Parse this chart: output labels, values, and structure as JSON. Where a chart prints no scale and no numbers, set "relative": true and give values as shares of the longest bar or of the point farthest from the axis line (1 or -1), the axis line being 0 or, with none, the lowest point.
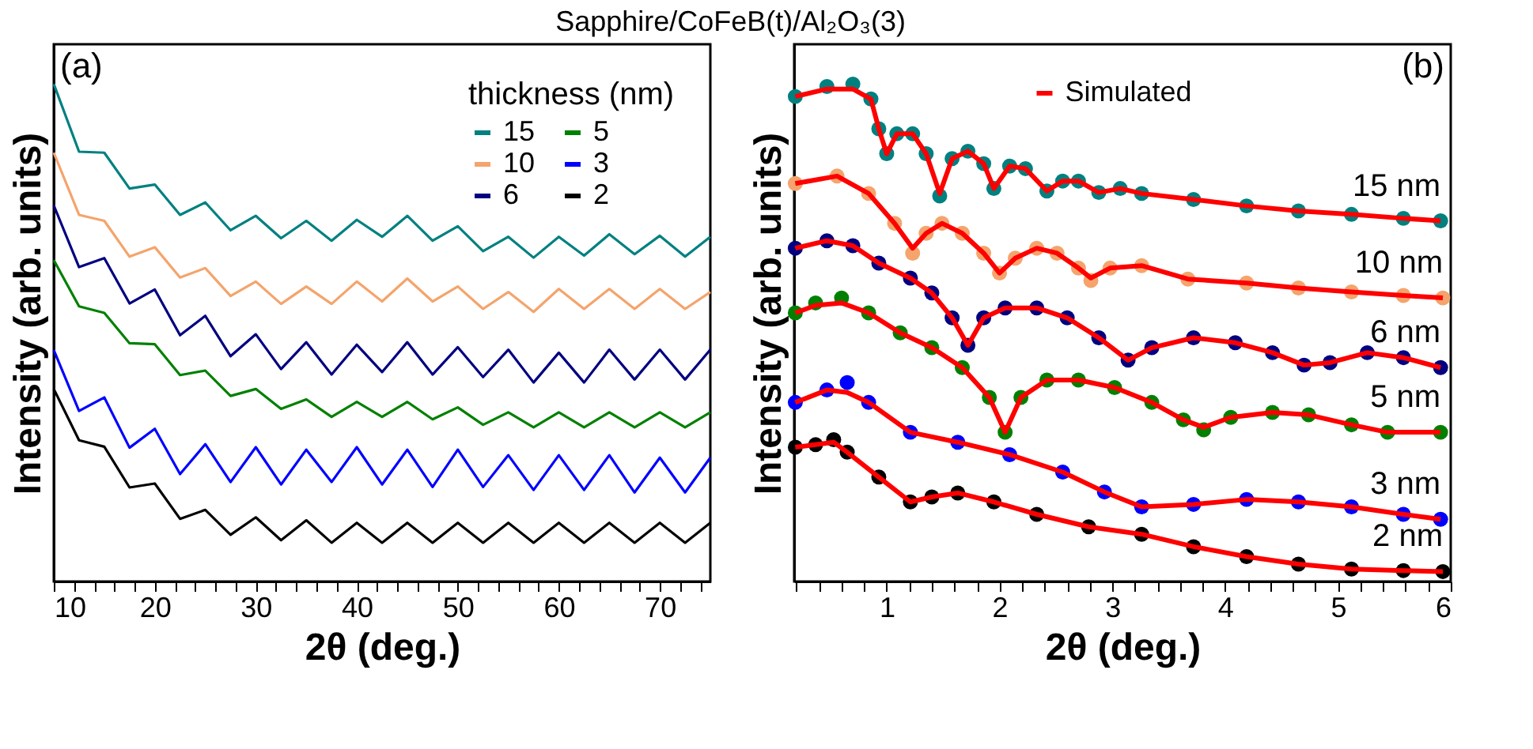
{
  "chart_data": [
    {
      "type": "line",
      "title": "Sapphire/CoFeB(t)/Al₂O₃(3)",
      "xlabel": "2θ (deg.)",
      "ylabel": "Intensity (arb. units)",
      "relative": true,
      "tick_labels": "x",
      "grid": false,
      "legend": "top right",
      "legend_title": "thickness (nm)",
      "annotations": [
        "(a)"
      ],
      "xlim": [
        10,
        75
      ],
      "xticks": [
        10,
        {
          "value": 12,
          "label": null
        },
        {
          "value": 14,
          "label": null
        },
        {
          "value": 16,
          "label": null
        },
        {
          "value": 18,
          "label": null
        },
        20,
        {
          "value": 22,
          "label": null
        },
        {
          "value": 24,
          "label": null
        },
        {
          "value": 26,
          "label": null
        },
        {
          "value": 28,
          "label": null
        },
        30,
        {
          "value": 32,
          "label": null
        },
        {
          "value": 34,
          "label": null
        },
        {
          "value": 36,
          "label": null
        },
        {
          "value": 38,
          "label": null
        },
        40,
        {
          "value": 42,
          "label": null
        },
        {
          "value": 44,
          "label": null
        },
        {
          "value": 46,
          "label": null
        },
        {
          "value": 48,
          "label": null
        },
        50,
        {
          "value": 52,
          "label": null
        },
        {
          "value": 54,
          "label": null
        },
        {
          "value": 56,
          "label": null
        },
        {
          "value": 58,
          "label": null
        },
        60,
        {
          "value": 62,
          "label": null
        },
        {
          "value": 64,
          "label": null
        },
        {
          "value": 66,
          "label": null
        },
        {
          "value": 68,
          "label": null
        },
        70,
        {
          "value": 72,
          "label": null
        },
        {
          "value": 74,
          "label": null
        }
      ],
      "series": [
        {
          "name": "15",
          "color": "#008080",
          "x": [
            10,
            12.5,
            15,
            17.5,
            20,
            22.5,
            25,
            27.5,
            30,
            32.5,
            35,
            37.5,
            40,
            42.5,
            45,
            47.5,
            50,
            52.5,
            55,
            57.5,
            60,
            62.5,
            65,
            67.5,
            70,
            72.5,
            75
          ],
          "values": [
            1,
            0.864,
            0.862,
            0.79,
            0.798,
            0.737,
            0.762,
            0.706,
            0.735,
            0.69,
            0.725,
            0.685,
            0.727,
            0.693,
            0.735,
            0.685,
            0.714,
            0.664,
            0.693,
            0.651,
            0.693,
            0.655,
            0.698,
            0.658,
            0.695,
            0.653,
            0.693
          ]
        },
        {
          "name": "10",
          "color": "#f4a46c",
          "x": [
            10,
            12.5,
            15,
            17.5,
            20,
            22.5,
            25,
            27.5,
            30,
            32.5,
            35,
            37.5,
            40,
            42.5,
            45,
            47.5,
            50,
            52.5,
            55,
            57.5,
            60,
            62.5,
            65,
            67.5,
            70,
            72.5,
            75
          ],
          "values": [
            0.862,
            0.737,
            0.725,
            0.653,
            0.672,
            0.611,
            0.63,
            0.574,
            0.603,
            0.558,
            0.593,
            0.558,
            0.603,
            0.563,
            0.609,
            0.563,
            0.593,
            0.548,
            0.582,
            0.542,
            0.588,
            0.548,
            0.588,
            0.548,
            0.588,
            0.548,
            0.582
          ]
        },
        {
          "name": "6",
          "color": "#000080",
          "x": [
            10,
            12.5,
            15,
            17.5,
            20,
            22.5,
            25,
            27.5,
            30,
            32.5,
            35,
            37.5,
            40,
            42.5,
            45,
            47.5,
            50,
            52.5,
            55,
            57.5,
            60,
            62.5,
            65,
            67.5,
            70,
            72.5,
            75
          ],
          "values": [
            0.756,
            0.632,
            0.65,
            0.559,
            0.587,
            0.495,
            0.534,
            0.453,
            0.497,
            0.427,
            0.481,
            0.416,
            0.476,
            0.421,
            0.481,
            0.416,
            0.471,
            0.411,
            0.466,
            0.4,
            0.46,
            0.4,
            0.466,
            0.406,
            0.466,
            0.406,
            0.466
          ]
        },
        {
          "name": "5",
          "color": "#008000",
          "x": [
            10,
            12.5,
            15,
            17.5,
            20,
            22.5,
            25,
            27.5,
            30,
            32.5,
            35,
            37.5,
            40,
            42.5,
            45,
            47.5,
            50,
            52.5,
            55,
            57.5,
            60,
            62.5,
            65,
            67.5,
            70,
            72.5,
            75
          ],
          "values": [
            0.646,
            0.553,
            0.54,
            0.479,
            0.477,
            0.415,
            0.424,
            0.373,
            0.387,
            0.347,
            0.366,
            0.331,
            0.361,
            0.331,
            0.361,
            0.326,
            0.35,
            0.315,
            0.34,
            0.31,
            0.34,
            0.31,
            0.34,
            0.31,
            0.34,
            0.31,
            0.34
          ]
        },
        {
          "name": "3",
          "color": "#0000ff",
          "x": [
            10,
            12.5,
            15,
            17.5,
            20,
            22.5,
            25,
            27.5,
            30,
            32.5,
            35,
            37.5,
            40,
            42.5,
            45,
            47.5,
            50,
            52.5,
            55,
            57.5,
            60,
            62.5,
            65,
            67.5,
            70,
            72.5,
            75
          ],
          "values": [
            0.465,
            0.343,
            0.37,
            0.269,
            0.307,
            0.216,
            0.276,
            0.2,
            0.27,
            0.195,
            0.265,
            0.2,
            0.27,
            0.195,
            0.265,
            0.19,
            0.265,
            0.19,
            0.254,
            0.184,
            0.254,
            0.184,
            0.254,
            0.179,
            0.249,
            0.179,
            0.249
          ]
        },
        {
          "name": "2",
          "color": "#000000",
          "x": [
            10,
            12.5,
            15,
            17.5,
            20,
            22.5,
            25,
            27.5,
            30,
            32.5,
            35,
            37.5,
            40,
            42.5,
            45,
            47.5,
            50,
            52.5,
            55,
            57.5,
            60,
            62.5,
            65,
            67.5,
            70,
            72.5,
            75
          ],
          "values": [
            0.387,
            0.284,
            0.271,
            0.189,
            0.197,
            0.126,
            0.144,
            0.094,
            0.129,
            0.083,
            0.123,
            0.078,
            0.118,
            0.078,
            0.118,
            0.078,
            0.118,
            0.078,
            0.118,
            0.078,
            0.118,
            0.078,
            0.118,
            0.078,
            0.118,
            0.078,
            0.118
          ]
        }
      ]
    },
    {
      "type": "line",
      "xlabel": "2θ (deg.)",
      "ylabel": "Intensity (arb. units)",
      "relative": true,
      "tick_labels": "x",
      "grid": false,
      "legend": "top",
      "annotations": [
        "(b)"
      ],
      "xlim": [
        0.18,
        6
      ],
      "xticks": [
        {
          "value": 0.2,
          "label": null
        },
        {
          "value": 0.4,
          "label": null
        },
        {
          "value": 0.6,
          "label": null
        },
        {
          "value": 0.8,
          "label": null
        },
        1,
        {
          "value": 1.2,
          "label": null
        },
        {
          "value": 1.4,
          "label": null
        },
        {
          "value": 1.6,
          "label": null
        },
        {
          "value": 1.8,
          "label": null
        },
        2,
        {
          "value": 2.2,
          "label": null
        },
        {
          "value": 2.4,
          "label": null
        },
        {
          "value": 2.6,
          "label": null
        },
        {
          "value": 2.8,
          "label": null
        },
        3,
        {
          "value": 3.2,
          "label": null
        },
        {
          "value": 3.4,
          "label": null
        },
        {
          "value": 3.6,
          "label": null
        },
        {
          "value": 3.8,
          "label": null
        },
        4,
        {
          "value": 4.2,
          "label": null
        },
        {
          "value": 4.4,
          "label": null
        },
        {
          "value": 4.6,
          "label": null
        },
        {
          "value": 4.8,
          "label": null
        },
        5,
        {
          "value": 5.2,
          "label": null
        },
        {
          "value": 5.4,
          "label": null
        },
        {
          "value": 5.6,
          "label": null
        },
        {
          "value": 5.8,
          "label": null
        },
        6
      ],
      "series": [
        {
          "name": "15 nm",
          "type": "scatter",
          "marker": "circle",
          "color": "#008080",
          "x": [
            0.19,
            0.47,
            0.7,
            0.86,
            0.93,
            1.0,
            1.09,
            1.23,
            1.35,
            1.47,
            1.58,
            1.72,
            1.86,
            1.95,
            2.09,
            2.23,
            2.42,
            2.56,
            2.7,
            2.88,
            3.07,
            3.26,
            3.72,
            4.19,
            4.65,
            5.12,
            5.58,
            5.91
          ],
          "values": [
            0.975,
            0.995,
            1.0,
            0.97,
            0.91,
            0.86,
            0.9,
            0.9,
            0.86,
            0.775,
            0.85,
            0.865,
            0.84,
            0.79,
            0.835,
            0.83,
            0.785,
            0.805,
            0.805,
            0.782,
            0.79,
            0.78,
            0.768,
            0.755,
            0.745,
            0.738,
            0.73,
            0.725
          ]
        },
        {
          "name": "10 nm",
          "type": "scatter",
          "marker": "circle",
          "color": "#f4a46c",
          "x": [
            0.19,
            0.56,
            0.84,
            1.07,
            1.23,
            1.35,
            1.49,
            1.67,
            1.86,
            2.0,
            2.14,
            2.33,
            2.51,
            2.7,
            2.81,
            2.98,
            3.26,
            3.67,
            4.19,
            4.65,
            5.12,
            5.58,
            5.93
          ],
          "values": [
            0.8,
            0.815,
            0.78,
            0.72,
            0.66,
            0.7,
            0.72,
            0.7,
            0.66,
            0.62,
            0.65,
            0.67,
            0.66,
            0.63,
            0.605,
            0.63,
            0.635,
            0.608,
            0.6,
            0.59,
            0.582,
            0.575,
            0.57
          ]
        },
        {
          "name": "6 nm",
          "type": "scatter",
          "marker": "circle",
          "color": "#000080",
          "x": [
            0.19,
            0.47,
            0.7,
            0.93,
            1.21,
            1.4,
            1.58,
            1.72,
            1.86,
            2.05,
            2.33,
            2.6,
            2.88,
            3.14,
            3.35,
            3.72,
            4.09,
            4.42,
            4.7,
            4.93,
            5.26,
            5.58,
            5.91
          ],
          "values": [
            0.67,
            0.685,
            0.675,
            0.64,
            0.61,
            0.58,
            0.53,
            0.475,
            0.53,
            0.55,
            0.55,
            0.53,
            0.49,
            0.445,
            0.47,
            0.49,
            0.48,
            0.46,
            0.435,
            0.44,
            0.46,
            0.45,
            0.43
          ]
        },
        {
          "name": "5 nm",
          "type": "scatter",
          "marker": "circle",
          "color": "#008000",
          "x": [
            0.19,
            0.37,
            0.6,
            0.84,
            1.12,
            1.4,
            1.67,
            1.91,
            2.05,
            2.19,
            2.42,
            2.7,
            3.02,
            3.35,
            3.63,
            3.81,
            4.05,
            4.42,
            4.74,
            5.12,
            5.44,
            5.91
          ],
          "values": [
            0.54,
            0.56,
            0.57,
            0.54,
            0.5,
            0.47,
            0.43,
            0.37,
            0.3,
            0.37,
            0.405,
            0.405,
            0.39,
            0.36,
            0.325,
            0.305,
            0.33,
            0.34,
            0.335,
            0.315,
            0.3,
            0.3
          ]
        },
        {
          "name": "3 nm",
          "type": "scatter",
          "marker": "circle",
          "color": "#0000ff",
          "x": [
            0.19,
            0.47,
            0.65,
            0.84,
            1.21,
            1.63,
            2.09,
            2.56,
            2.93,
            3.26,
            3.72,
            4.19,
            4.65,
            5.12,
            5.58,
            5.91
          ],
          "values": [
            0.36,
            0.385,
            0.4,
            0.36,
            0.3,
            0.28,
            0.255,
            0.22,
            0.18,
            0.15,
            0.155,
            0.165,
            0.16,
            0.15,
            0.135,
            0.125
          ]
        },
        {
          "name": "2 nm",
          "type": "scatter",
          "marker": "circle",
          "color": "#000000",
          "x": [
            0.19,
            0.37,
            0.53,
            0.65,
            0.93,
            1.21,
            1.4,
            1.63,
            1.95,
            2.33,
            2.79,
            3.26,
            3.72,
            4.19,
            4.65,
            5.12,
            5.58,
            5.93
          ],
          "values": [
            0.27,
            0.275,
            0.285,
            0.26,
            0.21,
            0.16,
            0.17,
            0.178,
            0.16,
            0.135,
            0.11,
            0.095,
            0.07,
            0.05,
            0.035,
            0.025,
            0.022,
            0.02
          ]
        },
        {
          "name": "Simulated",
          "type": "line",
          "color": "#ff0000",
          "x": [
            0.19,
            0.47,
            0.7,
            0.86,
            0.93,
            1.0,
            1.09,
            1.23,
            1.35,
            1.47,
            1.58,
            1.72,
            1.86,
            1.95,
            2.09,
            2.23,
            2.42,
            2.56,
            2.7,
            2.88,
            3.07,
            3.26,
            3.72,
            4.19,
            4.65,
            5.12,
            5.58,
            5.91
          ],
          "values": [
            0.975,
            0.99,
            0.99,
            0.97,
            0.91,
            0.86,
            0.9,
            0.9,
            0.86,
            0.78,
            0.85,
            0.865,
            0.84,
            0.79,
            0.835,
            0.83,
            0.785,
            0.805,
            0.805,
            0.782,
            0.79,
            0.78,
            0.768,
            0.755,
            0.745,
            0.738,
            0.73,
            0.725
          ]
        },
        {
          "type": "line",
          "color": "#ff0000",
          "x": [
            0.19,
            0.56,
            0.84,
            1.07,
            1.23,
            1.35,
            1.49,
            1.67,
            1.86,
            2.0,
            2.14,
            2.33,
            2.51,
            2.7,
            2.81,
            2.98,
            3.26,
            3.67,
            4.19,
            4.65,
            5.12,
            5.58,
            5.93
          ],
          "values": [
            0.8,
            0.815,
            0.78,
            0.72,
            0.67,
            0.7,
            0.72,
            0.7,
            0.66,
            0.62,
            0.65,
            0.67,
            0.66,
            0.63,
            0.61,
            0.63,
            0.635,
            0.608,
            0.6,
            0.59,
            0.582,
            0.575,
            0.57
          ]
        },
        {
          "type": "line",
          "color": "#ff0000",
          "x": [
            0.19,
            0.47,
            0.7,
            0.93,
            1.21,
            1.4,
            1.58,
            1.72,
            1.86,
            2.05,
            2.33,
            2.6,
            2.88,
            3.14,
            3.35,
            3.72,
            4.09,
            4.42,
            4.7,
            4.93,
            5.26,
            5.58,
            5.91
          ],
          "values": [
            0.67,
            0.685,
            0.675,
            0.64,
            0.61,
            0.58,
            0.53,
            0.475,
            0.53,
            0.55,
            0.55,
            0.53,
            0.49,
            0.445,
            0.47,
            0.49,
            0.48,
            0.46,
            0.435,
            0.44,
            0.46,
            0.45,
            0.43
          ]
        },
        {
          "type": "line",
          "color": "#ff0000",
          "x": [
            0.19,
            0.37,
            0.6,
            0.84,
            1.12,
            1.4,
            1.67,
            1.91,
            2.05,
            2.19,
            2.42,
            2.7,
            3.02,
            3.35,
            3.63,
            3.81,
            4.05,
            4.42,
            4.74,
            5.12,
            5.44,
            5.91
          ],
          "values": [
            0.54,
            0.555,
            0.56,
            0.54,
            0.5,
            0.47,
            0.43,
            0.37,
            0.3,
            0.37,
            0.405,
            0.405,
            0.39,
            0.36,
            0.325,
            0.31,
            0.33,
            0.34,
            0.335,
            0.315,
            0.3,
            0.3
          ]
        },
        {
          "type": "line",
          "color": "#ff0000",
          "x": [
            0.19,
            0.47,
            0.65,
            0.84,
            1.21,
            1.63,
            2.09,
            2.56,
            2.93,
            3.26,
            3.72,
            4.19,
            4.65,
            5.12,
            5.58,
            5.91
          ],
          "values": [
            0.36,
            0.385,
            0.38,
            0.36,
            0.3,
            0.28,
            0.255,
            0.22,
            0.18,
            0.15,
            0.155,
            0.165,
            0.16,
            0.15,
            0.135,
            0.125
          ]
        },
        {
          "type": "line",
          "color": "#ff0000",
          "x": [
            0.19,
            0.37,
            0.53,
            0.65,
            0.93,
            1.21,
            1.4,
            1.63,
            1.95,
            2.33,
            2.79,
            3.26,
            3.72,
            4.19,
            4.65,
            5.12,
            5.58,
            5.93
          ],
          "values": [
            0.27,
            0.275,
            0.28,
            0.26,
            0.21,
            0.16,
            0.17,
            0.178,
            0.16,
            0.135,
            0.11,
            0.095,
            0.07,
            0.05,
            0.035,
            0.025,
            0.022,
            0.02
          ]
        }
      ]
    }
  ]
}
